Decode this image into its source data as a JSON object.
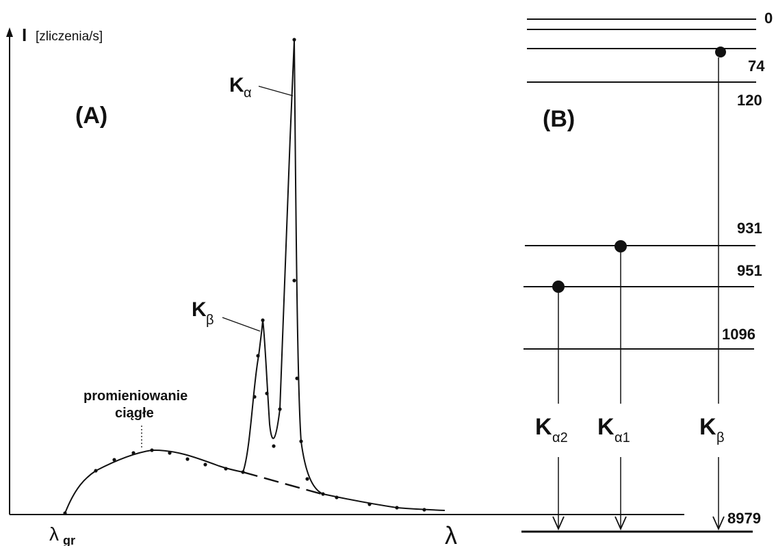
{
  "panel_a": {
    "label": "(A)",
    "y_axis_symbol": "I",
    "y_axis_unit": "[zliczenia/s]",
    "x_axis_symbol": "λ",
    "threshold_symbol": "λ",
    "threshold_subscript": "gr",
    "continuum_label_line1": "promieniowanie",
    "continuum_label_line2": "ciągłe",
    "peak_alpha": {
      "main": "K",
      "sub": "α"
    },
    "peak_beta": {
      "main": "K",
      "sub": "β"
    }
  },
  "panel_b": {
    "label": "(B)",
    "levels": [
      {
        "value": "0"
      },
      {
        "value": "74"
      },
      {
        "value": "120"
      },
      {
        "value": "931"
      },
      {
        "value": "951"
      },
      {
        "value": "1096"
      },
      {
        "value": "8979"
      }
    ],
    "transitions": [
      {
        "main": "K",
        "sub": "α2"
      },
      {
        "main": "K",
        "sub": "α1"
      },
      {
        "main": "K",
        "sub": "β"
      }
    ]
  },
  "colors": {
    "ink": "#111111",
    "background": "#ffffff"
  }
}
